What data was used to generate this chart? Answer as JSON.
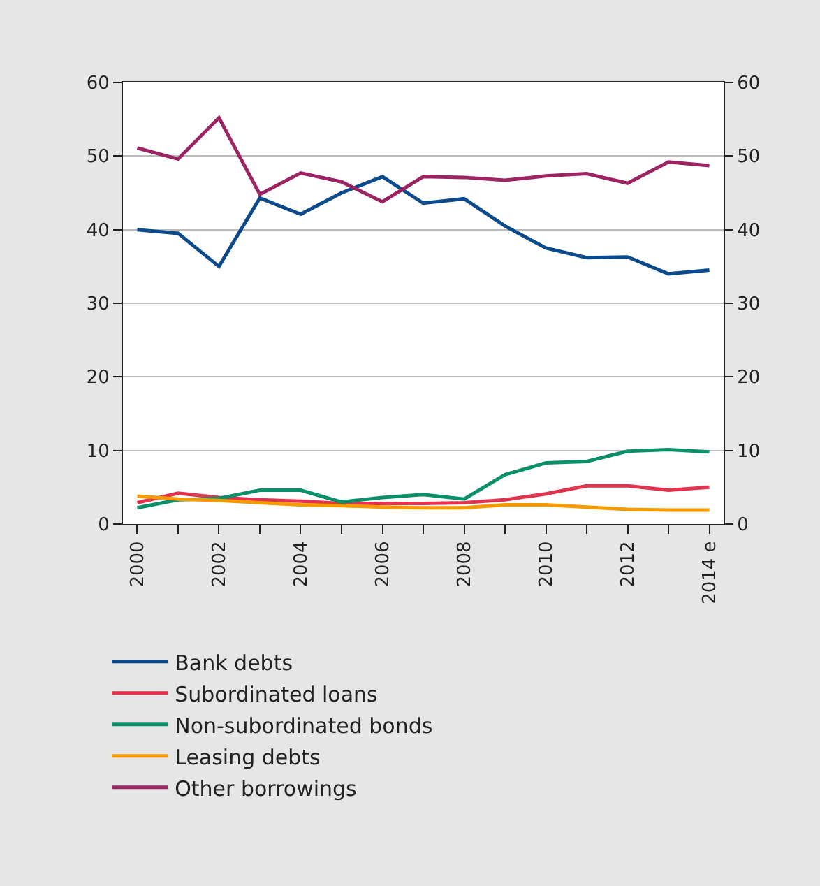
{
  "chart_data": {
    "type": "line",
    "categories": [
      "2000",
      null,
      "2002",
      null,
      "2004",
      null,
      "2006",
      null,
      "2008",
      null,
      "2010",
      null,
      "2012",
      null,
      "2014 e"
    ],
    "series": [
      {
        "name": "Bank debts",
        "color": "#0b4a8b",
        "values": [
          40,
          39.5,
          35,
          44.3,
          42.1,
          45,
          47.2,
          43.6,
          44.2,
          40.5,
          37.5,
          36.2,
          36.3,
          34,
          34.5
        ]
      },
      {
        "name": "Subordinated loans",
        "color": "#e0344f",
        "values": [
          2.9,
          4.2,
          3.6,
          3.3,
          3.1,
          2.8,
          2.8,
          2.8,
          2.9,
          3.3,
          4.1,
          5.2,
          5.2,
          4.6,
          5.0
        ]
      },
      {
        "name": "Non-subordinated bonds",
        "color": "#0a8f6a",
        "values": [
          2.2,
          3.3,
          3.5,
          4.6,
          4.6,
          3.0,
          3.6,
          4.0,
          3.4,
          6.7,
          8.3,
          8.5,
          9.9,
          10.1,
          9.8
        ]
      },
      {
        "name": "Leasing debts",
        "color": "#f59b00",
        "values": [
          3.8,
          3.4,
          3.2,
          2.9,
          2.6,
          2.5,
          2.3,
          2.2,
          2.2,
          2.6,
          2.6,
          2.3,
          2.0,
          1.9,
          1.9
        ]
      },
      {
        "name": "Other borrowings",
        "color": "#9c2462",
        "values": [
          51.1,
          49.6,
          55.2,
          44.8,
          47.7,
          46.5,
          43.8,
          47.2,
          47.1,
          46.7,
          47.3,
          47.6,
          46.3,
          49.2,
          48.7
        ]
      }
    ],
    "ylim": [
      0,
      60
    ],
    "yticks": [
      0,
      10,
      20,
      30,
      40,
      50,
      60
    ],
    "y2lim": [
      0,
      60
    ],
    "y2ticks": [
      0,
      10,
      20,
      30,
      40,
      50,
      60
    ],
    "grid": "y",
    "legend": "bottom",
    "marker": "none",
    "line_style": "solid"
  }
}
